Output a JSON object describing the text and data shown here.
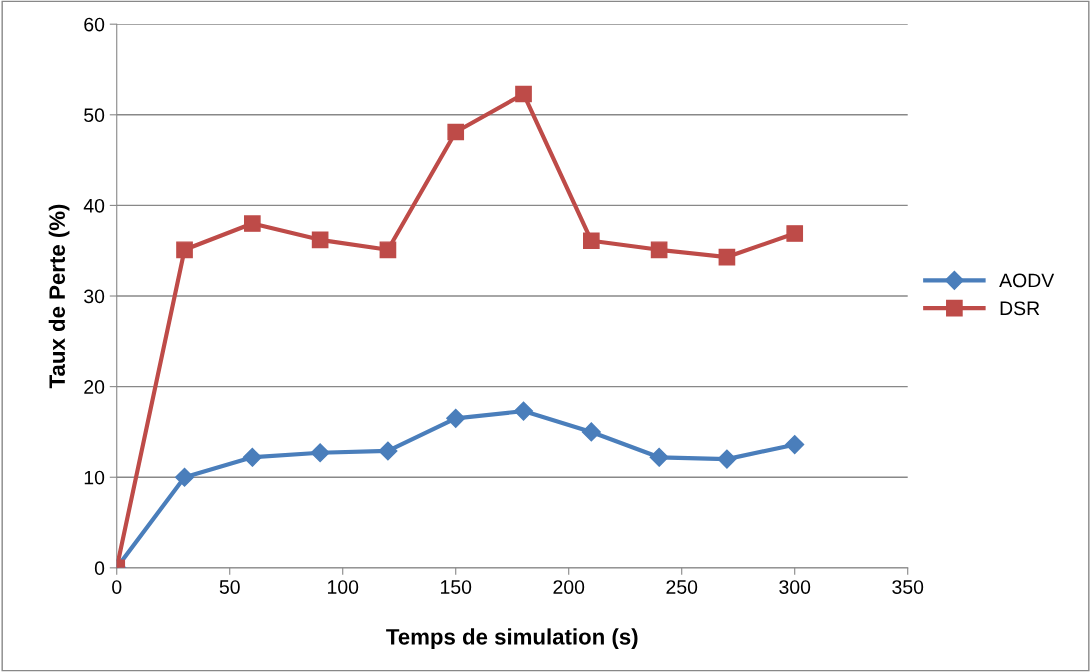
{
  "chart_data": {
    "type": "line",
    "xlabel": "Temps de simulation (s)",
    "ylabel": "Taux de Perte (%)",
    "xlim": [
      0,
      350
    ],
    "xticks": [
      0,
      50,
      100,
      150,
      200,
      250,
      300,
      350
    ],
    "ylim": [
      0,
      60
    ],
    "yticks": [
      0,
      10,
      20,
      30,
      40,
      50,
      60
    ],
    "grid": "y",
    "legend": "right",
    "line_style": "solid",
    "series": [
      {
        "name": "AODV",
        "color": "#4a7ebb",
        "marker": "diamond",
        "x": [
          0,
          30,
          60,
          90,
          120,
          150,
          180,
          210,
          240,
          270,
          300
        ],
        "values": [
          0,
          10.0,
          12.2,
          12.7,
          12.9,
          16.5,
          17.3,
          15.0,
          12.2,
          12.0,
          13.6
        ]
      },
      {
        "name": "DSR",
        "color": "#be4b48",
        "marker": "square",
        "x": [
          0,
          30,
          60,
          90,
          120,
          150,
          180,
          210,
          240,
          270,
          300
        ],
        "values": [
          0,
          35.1,
          38.0,
          36.2,
          35.1,
          48.1,
          52.3,
          36.1,
          35.1,
          34.3,
          36.9
        ]
      }
    ]
  }
}
